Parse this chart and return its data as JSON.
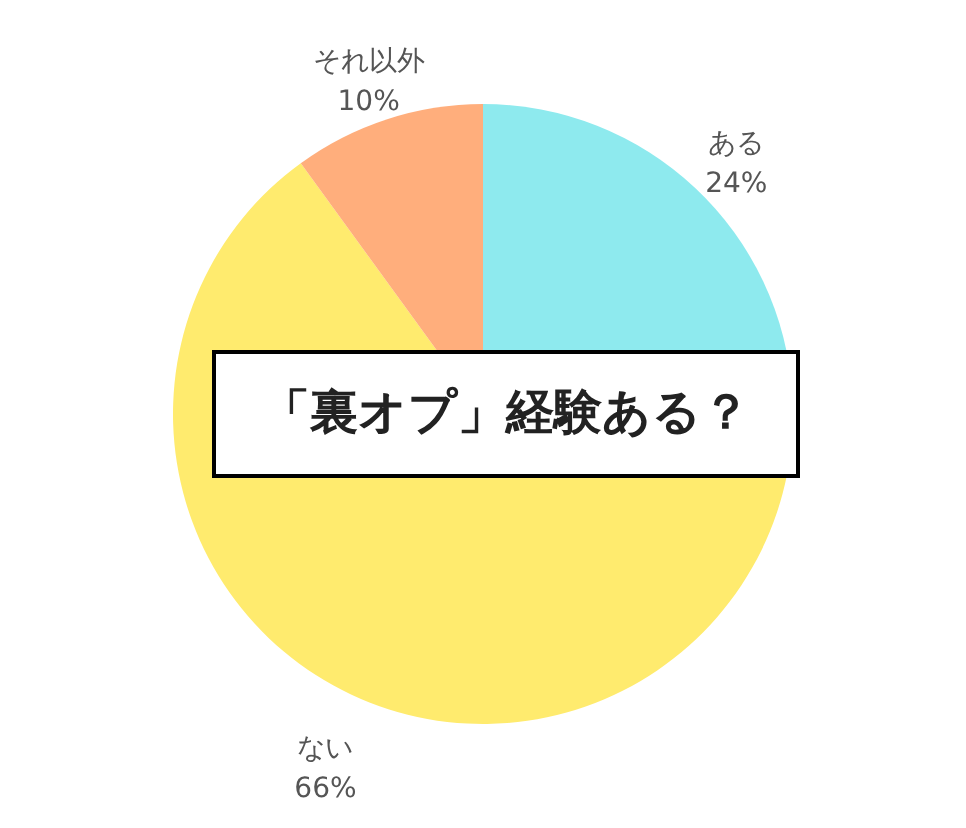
{
  "chart_data": {
    "type": "pie",
    "title": "「裏オプ」経験ある？",
    "categories": [
      "ある",
      "ない",
      "それ以外"
    ],
    "values": [
      24,
      66,
      10
    ],
    "value_labels": [
      "24%",
      "66%",
      "10%"
    ],
    "colors": [
      "#8eeaee",
      "#ffeb6e",
      "#ffae7c"
    ]
  }
}
